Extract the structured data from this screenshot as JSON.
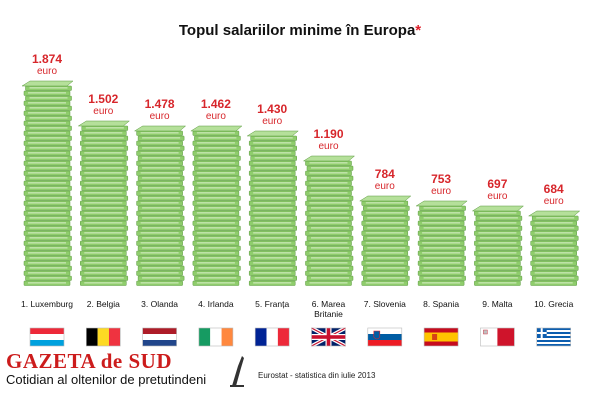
{
  "title": "Topul salariilor minime în Europa",
  "title_marker": "*",
  "value_unit": "euro",
  "source_note": "Eurostat - statistica din iulie 2013",
  "publisher": {
    "name": "GAZETA de SUD",
    "tagline": "Cotidian al oltenilor de pretutindeni"
  },
  "colors": {
    "value_label": "#d7262b",
    "banknote_green": "#7cc35a",
    "publisher_red": "#cc1c1c"
  },
  "chart_data": {
    "type": "bar",
    "title": "Topul salariilor minime în Europa",
    "xlabel": "",
    "ylabel": "",
    "ylim": [
      0,
      1874
    ],
    "grid": false,
    "legend": "none",
    "categories": [
      "1. Luxemburg",
      "2. Belgia",
      "3. Olanda",
      "4. Irlanda",
      "5. Franța",
      "6. Marea Britanie",
      "7. Slovenia",
      "8. Spania",
      "9. Malta",
      "10. Grecia"
    ],
    "category_lines": [
      [
        "1. Luxemburg"
      ],
      [
        "2. Belgia"
      ],
      [
        "3. Olanda"
      ],
      [
        "4. Irlanda"
      ],
      [
        "5. Franța"
      ],
      [
        "6. Marea",
        "Britanie"
      ],
      [
        "7. Slovenia"
      ],
      [
        "8. Spania"
      ],
      [
        "9. Malta"
      ],
      [
        "10. Grecia"
      ]
    ],
    "values": [
      1874,
      1502,
      1478,
      1462,
      1430,
      1190,
      784,
      753,
      697,
      684
    ],
    "value_labels": [
      "1.874",
      "1.502",
      "1.478",
      "1.462",
      "1.430",
      "1.190",
      "784",
      "753",
      "697",
      "684"
    ],
    "flags": [
      "luxembourg-flag",
      "belgium-flag",
      "netherlands-flag",
      "ireland-flag",
      "france-flag",
      "uk-flag",
      "slovenia-flag",
      "spain-flag",
      "malta-flag",
      "greece-flag"
    ]
  }
}
